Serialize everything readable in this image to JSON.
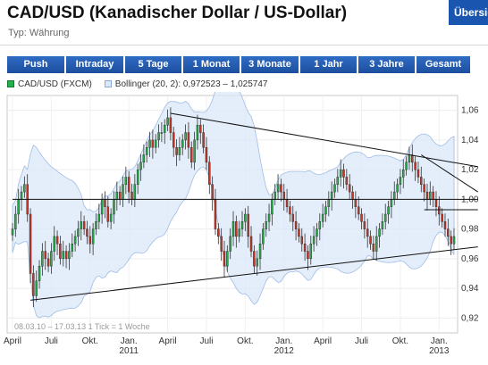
{
  "header": {
    "title": "CAD/USD (Kanadischer Dollar / US-Dollar)",
    "subtitle": "Typ: Währung",
    "overview_button": "Übersicht"
  },
  "tabs": [
    {
      "label": "Push"
    },
    {
      "label": "Intraday"
    },
    {
      "label": "5 Tage"
    },
    {
      "label": "1 Monat"
    },
    {
      "label": "3 Monate"
    },
    {
      "label": "1 Jahr"
    },
    {
      "label": "3 Jahre"
    },
    {
      "label": "Gesamt"
    }
  ],
  "legend": {
    "series_label": "CAD/USD (FXCM)",
    "bollinger_label": "Bollinger (20, 2): 0,972523 – 1,025747"
  },
  "colors": {
    "tab_bg": "#1d4f9e",
    "up_candle": "#2aa84a",
    "down_candle": "#c0392b",
    "band_fill": "#dbe8fa",
    "band_line": "#9fbde6"
  },
  "chart_data": {
    "type": "candlestick",
    "title": "",
    "xlabel": "",
    "ylabel": "",
    "ylim": [
      0.91,
      1.07
    ],
    "y_ticks": [
      "1,06",
      "1,04",
      "1,02",
      "1,00",
      "0,98",
      "0,96",
      "0,94",
      "0,92"
    ],
    "y_tick_values": [
      1.06,
      1.04,
      1.02,
      1.0,
      0.98,
      0.96,
      0.94,
      0.92
    ],
    "x_months": [
      {
        "label": "April",
        "year": "",
        "idx": 0
      },
      {
        "label": "Juli",
        "year": "",
        "idx": 13
      },
      {
        "label": "Okt.",
        "year": "",
        "idx": 26
      },
      {
        "label": "Jan.",
        "year": "2011",
        "idx": 39
      },
      {
        "label": "April",
        "year": "",
        "idx": 52
      },
      {
        "label": "Juli",
        "year": "",
        "idx": 65
      },
      {
        "label": "Okt.",
        "year": "",
        "idx": 78
      },
      {
        "label": "Jan.",
        "year": "2012",
        "idx": 91
      },
      {
        "label": "April",
        "year": "",
        "idx": 104
      },
      {
        "label": "Juli",
        "year": "",
        "idx": 117
      },
      {
        "label": "Okt.",
        "year": "",
        "idx": 130
      },
      {
        "label": "Jan.",
        "year": "2013",
        "idx": 143
      }
    ],
    "date_range": "08.03.10 – 17.03.13",
    "tick_note": "1 Tick = 1 Woche",
    "weekly_close": [
      0.98,
      0.99,
      1.0,
      1.005,
      1.01,
      0.99,
      0.95,
      0.935,
      0.945,
      0.955,
      0.965,
      0.96,
      0.955,
      0.965,
      0.975,
      0.97,
      0.96,
      0.965,
      0.96,
      0.965,
      0.97,
      0.975,
      0.98,
      0.985,
      0.98,
      0.975,
      0.97,
      0.98,
      0.985,
      0.99,
      1.0,
      0.995,
      0.985,
      0.99,
      1.0,
      1.005,
      1.0,
      1.01,
      1.015,
      1.005,
      1.0,
      1.01,
      1.02,
      1.025,
      1.03,
      1.035,
      1.04,
      1.035,
      1.04,
      1.045,
      1.045,
      1.05,
      1.055,
      1.045,
      1.035,
      1.03,
      1.035,
      1.04,
      1.045,
      1.035,
      1.025,
      1.04,
      1.05,
      1.045,
      1.035,
      1.025,
      1.01,
      1.0,
      0.98,
      0.975,
      0.965,
      0.955,
      0.965,
      0.975,
      0.985,
      0.975,
      0.98,
      0.985,
      0.99,
      0.975,
      0.965,
      0.955,
      0.96,
      0.97,
      0.98,
      0.985,
      0.99,
      1.0,
      1.005,
      1.01,
      1.005,
      1.0,
      0.995,
      0.99,
      0.985,
      0.98,
      0.975,
      0.97,
      0.965,
      0.96,
      0.97,
      0.975,
      0.98,
      0.985,
      0.99,
      0.995,
      1.0,
      1.005,
      1.01,
      1.015,
      1.02,
      1.015,
      1.01,
      1.005,
      1.0,
      0.995,
      0.99,
      0.985,
      0.98,
      0.975,
      0.97,
      0.965,
      0.975,
      0.98,
      0.985,
      0.99,
      0.995,
      1.0,
      1.005,
      1.01,
      1.015,
      1.02,
      1.025,
      1.03,
      1.025,
      1.02,
      1.015,
      1.01,
      1.005,
      1.0,
      1.005,
      1.0,
      0.995,
      0.99,
      0.985,
      0.98,
      0.975,
      0.97,
      0.975
    ],
    "trendlines": [
      {
        "from": [
          6,
          0.932
        ],
        "to": [
          156,
          0.968
        ]
      },
      {
        "from": [
          0,
          1.0
        ],
        "to": [
          156,
          1.0
        ]
      },
      {
        "from": [
          53,
          1.058
        ],
        "to": [
          156,
          1.022
        ]
      },
      {
        "from": [
          137,
          1.03
        ],
        "to": [
          156,
          1.005
        ]
      },
      {
        "from": [
          138,
          0.993
        ],
        "to": [
          156,
          0.993
        ]
      }
    ]
  }
}
